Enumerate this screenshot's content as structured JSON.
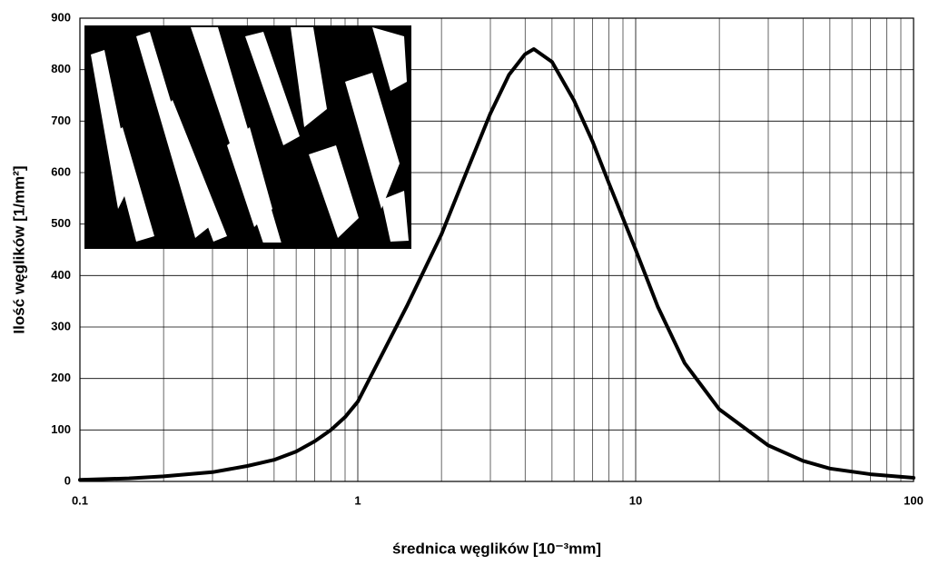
{
  "chart_data": {
    "type": "line",
    "xlabel": "średnica węglików  [10⁻³mm]",
    "ylabel": "Ilość węglików [1/mm²]",
    "log_x": true,
    "grid": true,
    "xlim": [
      0.1,
      100
    ],
    "xticks": [
      0.1,
      1,
      10,
      100
    ],
    "xminorticks": [
      0.2,
      0.3,
      0.4,
      0.5,
      0.6,
      0.7,
      0.8,
      0.9,
      2,
      3,
      4,
      5,
      6,
      7,
      8,
      9,
      20,
      30,
      40,
      50,
      60,
      70,
      80,
      90
    ],
    "ylim": [
      0,
      900
    ],
    "yticks": [
      0,
      100,
      200,
      300,
      400,
      500,
      600,
      700,
      800,
      900
    ],
    "x": [
      0.1,
      0.15,
      0.2,
      0.3,
      0.4,
      0.5,
      0.6,
      0.7,
      0.8,
      0.9,
      1,
      1.5,
      2,
      2.5,
      3,
      3.5,
      4,
      4.3,
      5,
      6,
      7,
      8,
      10,
      12,
      15,
      20,
      30,
      40,
      50,
      70,
      100
    ],
    "series": [
      {
        "color": "#000000",
        "values": [
          3,
          6,
          10,
          18,
          30,
          42,
          58,
          78,
          100,
          125,
          155,
          340,
          480,
          610,
          715,
          790,
          830,
          840,
          815,
          740,
          660,
          580,
          450,
          340,
          230,
          140,
          70,
          40,
          25,
          14,
          7
        ]
      }
    ]
  }
}
